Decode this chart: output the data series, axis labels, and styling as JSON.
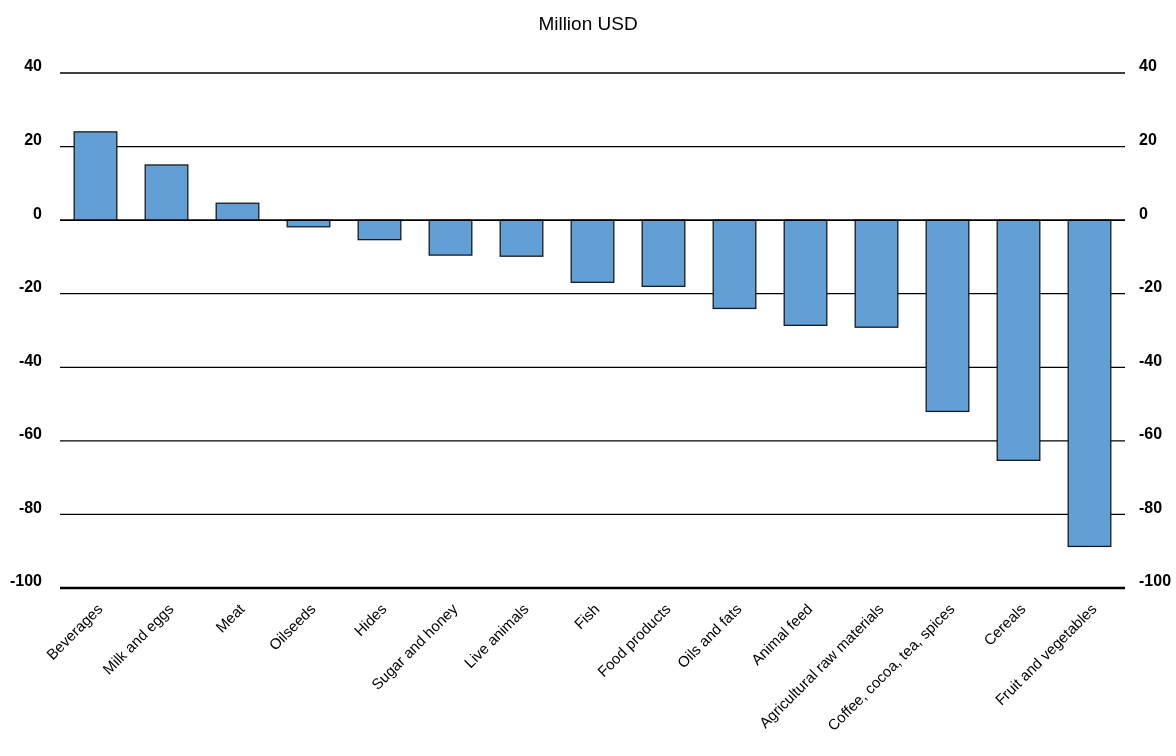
{
  "chart_data": {
    "type": "bar",
    "subtitle": "Million USD",
    "categories": [
      "Beverages",
      "Milk and eggs",
      "Meat",
      "Oilseeds",
      "Hides",
      "Sugar and honey",
      "Live animals",
      "Fish",
      "Food products",
      "Oils and fats",
      "Animal feed",
      "Agricultural raw materials",
      "Coffee, cocoa, tea, spices",
      "Cereals",
      "Fruit and vegetables"
    ],
    "values": [
      24,
      15,
      4.6,
      -1.8,
      -5.3,
      -9.5,
      -9.8,
      -16.9,
      -18,
      -24,
      -28.6,
      -29.1,
      -52,
      -65.3,
      -88.7
    ],
    "color": "#629fd5",
    "ylim": [
      -100,
      40
    ],
    "yticks": [
      -100,
      -80,
      -60,
      -40,
      -20,
      0,
      20,
      40
    ],
    "y2lim": [
      -100,
      40
    ],
    "y2ticks": [
      -100,
      -80,
      -60,
      -40,
      -20,
      0,
      20,
      40
    ],
    "grid": "y"
  }
}
